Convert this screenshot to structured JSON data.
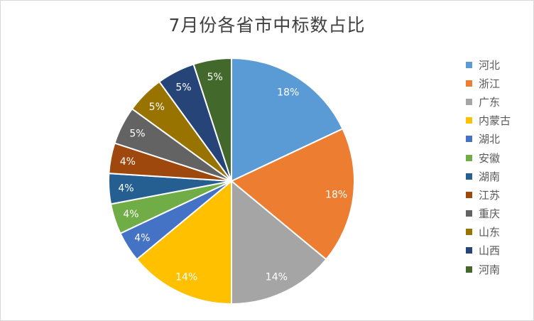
{
  "chart_data": {
    "type": "pie",
    "title": "7月份各省市中标数占比",
    "categories": [
      "河北",
      "浙江",
      "广东",
      "内蒙古",
      "湖北",
      "安徽",
      "湖南",
      "江苏",
      "重庆",
      "山东",
      "山西",
      "河南"
    ],
    "values": [
      18,
      18,
      14,
      14,
      4,
      4,
      4,
      4,
      5,
      5,
      5,
      5
    ],
    "labels": [
      "18%",
      "18%",
      "14%",
      "14%",
      "4%",
      "4%",
      "4%",
      "4%",
      "5%",
      "5%",
      "5%",
      "5%"
    ],
    "colors": [
      "#5B9BD5",
      "#ED7D31",
      "#A5A5A5",
      "#FFC000",
      "#4472C4",
      "#70AD47",
      "#255E91",
      "#9E480E",
      "#636363",
      "#997300",
      "#264478",
      "#43682B"
    ],
    "legend": "right",
    "start": "top, clockwise"
  }
}
